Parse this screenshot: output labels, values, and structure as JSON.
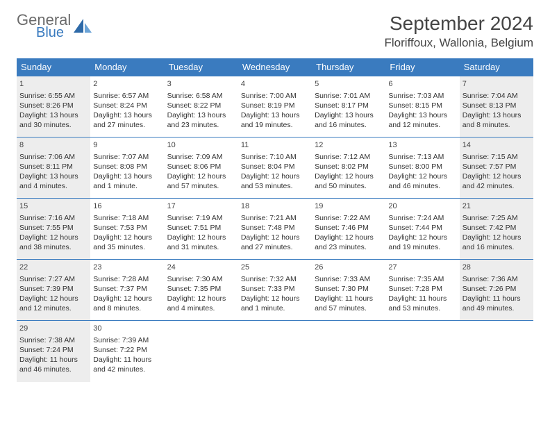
{
  "logo": {
    "general": "General",
    "blue": "Blue"
  },
  "title": "September 2024",
  "location": "Floriffoux, Wallonia, Belgium",
  "weekdays": [
    "Sunday",
    "Monday",
    "Tuesday",
    "Wednesday",
    "Thursday",
    "Friday",
    "Saturday"
  ],
  "colors": {
    "brand_blue": "#3a7bbf",
    "header_text": "#ffffff",
    "shaded_bg": "#ededed",
    "text": "#333333",
    "logo_gray": "#6b6b6b"
  },
  "days": [
    {
      "n": "1",
      "shaded": true,
      "sunrise": "Sunrise: 6:55 AM",
      "sunset": "Sunset: 8:26 PM",
      "daylight": "Daylight: 13 hours and 30 minutes."
    },
    {
      "n": "2",
      "shaded": false,
      "sunrise": "Sunrise: 6:57 AM",
      "sunset": "Sunset: 8:24 PM",
      "daylight": "Daylight: 13 hours and 27 minutes."
    },
    {
      "n": "3",
      "shaded": false,
      "sunrise": "Sunrise: 6:58 AM",
      "sunset": "Sunset: 8:22 PM",
      "daylight": "Daylight: 13 hours and 23 minutes."
    },
    {
      "n": "4",
      "shaded": false,
      "sunrise": "Sunrise: 7:00 AM",
      "sunset": "Sunset: 8:19 PM",
      "daylight": "Daylight: 13 hours and 19 minutes."
    },
    {
      "n": "5",
      "shaded": false,
      "sunrise": "Sunrise: 7:01 AM",
      "sunset": "Sunset: 8:17 PM",
      "daylight": "Daylight: 13 hours and 16 minutes."
    },
    {
      "n": "6",
      "shaded": false,
      "sunrise": "Sunrise: 7:03 AM",
      "sunset": "Sunset: 8:15 PM",
      "daylight": "Daylight: 13 hours and 12 minutes."
    },
    {
      "n": "7",
      "shaded": true,
      "sunrise": "Sunrise: 7:04 AM",
      "sunset": "Sunset: 8:13 PM",
      "daylight": "Daylight: 13 hours and 8 minutes."
    },
    {
      "n": "8",
      "shaded": true,
      "sunrise": "Sunrise: 7:06 AM",
      "sunset": "Sunset: 8:11 PM",
      "daylight": "Daylight: 13 hours and 4 minutes."
    },
    {
      "n": "9",
      "shaded": false,
      "sunrise": "Sunrise: 7:07 AM",
      "sunset": "Sunset: 8:08 PM",
      "daylight": "Daylight: 13 hours and 1 minute."
    },
    {
      "n": "10",
      "shaded": false,
      "sunrise": "Sunrise: 7:09 AM",
      "sunset": "Sunset: 8:06 PM",
      "daylight": "Daylight: 12 hours and 57 minutes."
    },
    {
      "n": "11",
      "shaded": false,
      "sunrise": "Sunrise: 7:10 AM",
      "sunset": "Sunset: 8:04 PM",
      "daylight": "Daylight: 12 hours and 53 minutes."
    },
    {
      "n": "12",
      "shaded": false,
      "sunrise": "Sunrise: 7:12 AM",
      "sunset": "Sunset: 8:02 PM",
      "daylight": "Daylight: 12 hours and 50 minutes."
    },
    {
      "n": "13",
      "shaded": false,
      "sunrise": "Sunrise: 7:13 AM",
      "sunset": "Sunset: 8:00 PM",
      "daylight": "Daylight: 12 hours and 46 minutes."
    },
    {
      "n": "14",
      "shaded": true,
      "sunrise": "Sunrise: 7:15 AM",
      "sunset": "Sunset: 7:57 PM",
      "daylight": "Daylight: 12 hours and 42 minutes."
    },
    {
      "n": "15",
      "shaded": true,
      "sunrise": "Sunrise: 7:16 AM",
      "sunset": "Sunset: 7:55 PM",
      "daylight": "Daylight: 12 hours and 38 minutes."
    },
    {
      "n": "16",
      "shaded": false,
      "sunrise": "Sunrise: 7:18 AM",
      "sunset": "Sunset: 7:53 PM",
      "daylight": "Daylight: 12 hours and 35 minutes."
    },
    {
      "n": "17",
      "shaded": false,
      "sunrise": "Sunrise: 7:19 AM",
      "sunset": "Sunset: 7:51 PM",
      "daylight": "Daylight: 12 hours and 31 minutes."
    },
    {
      "n": "18",
      "shaded": false,
      "sunrise": "Sunrise: 7:21 AM",
      "sunset": "Sunset: 7:48 PM",
      "daylight": "Daylight: 12 hours and 27 minutes."
    },
    {
      "n": "19",
      "shaded": false,
      "sunrise": "Sunrise: 7:22 AM",
      "sunset": "Sunset: 7:46 PM",
      "daylight": "Daylight: 12 hours and 23 minutes."
    },
    {
      "n": "20",
      "shaded": false,
      "sunrise": "Sunrise: 7:24 AM",
      "sunset": "Sunset: 7:44 PM",
      "daylight": "Daylight: 12 hours and 19 minutes."
    },
    {
      "n": "21",
      "shaded": true,
      "sunrise": "Sunrise: 7:25 AM",
      "sunset": "Sunset: 7:42 PM",
      "daylight": "Daylight: 12 hours and 16 minutes."
    },
    {
      "n": "22",
      "shaded": true,
      "sunrise": "Sunrise: 7:27 AM",
      "sunset": "Sunset: 7:39 PM",
      "daylight": "Daylight: 12 hours and 12 minutes."
    },
    {
      "n": "23",
      "shaded": false,
      "sunrise": "Sunrise: 7:28 AM",
      "sunset": "Sunset: 7:37 PM",
      "daylight": "Daylight: 12 hours and 8 minutes."
    },
    {
      "n": "24",
      "shaded": false,
      "sunrise": "Sunrise: 7:30 AM",
      "sunset": "Sunset: 7:35 PM",
      "daylight": "Daylight: 12 hours and 4 minutes."
    },
    {
      "n": "25",
      "shaded": false,
      "sunrise": "Sunrise: 7:32 AM",
      "sunset": "Sunset: 7:33 PM",
      "daylight": "Daylight: 12 hours and 1 minute."
    },
    {
      "n": "26",
      "shaded": false,
      "sunrise": "Sunrise: 7:33 AM",
      "sunset": "Sunset: 7:30 PM",
      "daylight": "Daylight: 11 hours and 57 minutes."
    },
    {
      "n": "27",
      "shaded": false,
      "sunrise": "Sunrise: 7:35 AM",
      "sunset": "Sunset: 7:28 PM",
      "daylight": "Daylight: 11 hours and 53 minutes."
    },
    {
      "n": "28",
      "shaded": true,
      "sunrise": "Sunrise: 7:36 AM",
      "sunset": "Sunset: 7:26 PM",
      "daylight": "Daylight: 11 hours and 49 minutes."
    },
    {
      "n": "29",
      "shaded": true,
      "sunrise": "Sunrise: 7:38 AM",
      "sunset": "Sunset: 7:24 PM",
      "daylight": "Daylight: 11 hours and 46 minutes."
    },
    {
      "n": "30",
      "shaded": false,
      "sunrise": "Sunrise: 7:39 AM",
      "sunset": "Sunset: 7:22 PM",
      "daylight": "Daylight: 11 hours and 42 minutes."
    }
  ]
}
